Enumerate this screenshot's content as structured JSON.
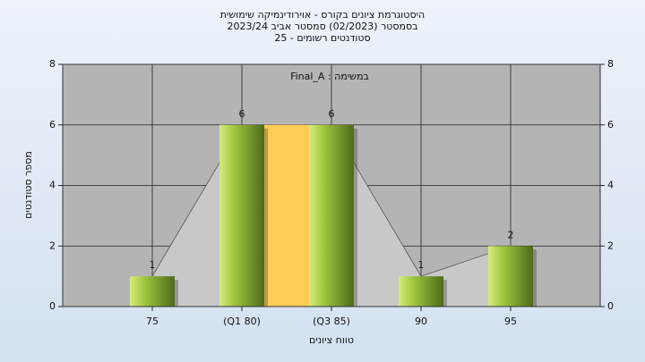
{
  "chart_data": {
    "type": "bar",
    "title": [
      "היסטוגרמת ציונים בקורס - אוירודינמיקה שימושית",
      "בסמסטר  (02/2023)  סמסטר אביב 2023/24",
      "סטודנטים רשומים - 25"
    ],
    "annotation": "Final_A : במשימה",
    "xlabel": "טווח ציונים",
    "ylabel": "מספר סטודנטים",
    "categories": [
      "75",
      "(Q1 80)",
      "(Q3 85)",
      "90",
      "95"
    ],
    "values": [
      1,
      6,
      6,
      1,
      2
    ],
    "color": "#9cc43c",
    "ylim": [
      0,
      8
    ],
    "yticks": [
      0,
      2,
      4,
      6,
      8
    ],
    "y2lim": [
      0,
      8
    ],
    "y2ticks": [
      0,
      2,
      4,
      6,
      8
    ],
    "grid": true
  }
}
